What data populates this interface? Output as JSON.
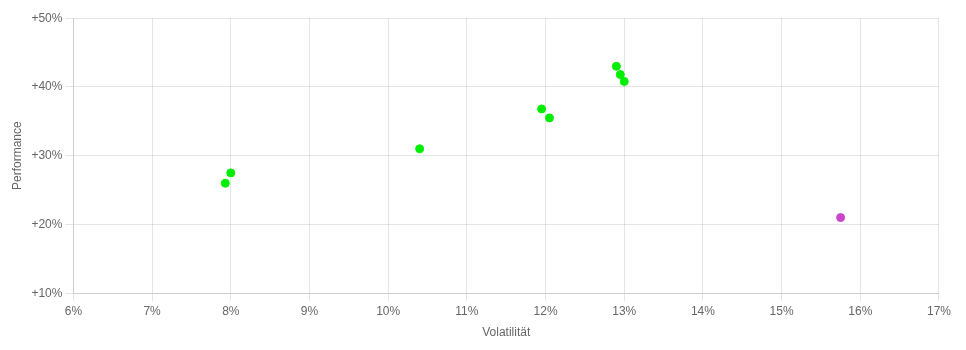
{
  "chart_data": {
    "type": "scatter",
    "xlabel": "Volatilität",
    "ylabel": "Performance",
    "xlim": [
      0.06,
      0.17
    ],
    "ylim": [
      0.1,
      0.5
    ],
    "xticks": [
      {
        "value": 0.06,
        "label": "6%"
      },
      {
        "value": 0.07,
        "label": "7%"
      },
      {
        "value": 0.08,
        "label": "8%"
      },
      {
        "value": 0.09,
        "label": "9%"
      },
      {
        "value": 0.1,
        "label": "10%"
      },
      {
        "value": 0.11,
        "label": "11%"
      },
      {
        "value": 0.12,
        "label": "12%"
      },
      {
        "value": 0.13,
        "label": "13%"
      },
      {
        "value": 0.14,
        "label": "14%"
      },
      {
        "value": 0.15,
        "label": "15%"
      },
      {
        "value": 0.16,
        "label": "16%"
      },
      {
        "value": 0.17,
        "label": "17%"
      }
    ],
    "yticks": [
      {
        "value": 0.1,
        "label": "+10%"
      },
      {
        "value": 0.2,
        "label": "+20%"
      },
      {
        "value": 0.3,
        "label": "+30%"
      },
      {
        "value": 0.4,
        "label": "+40%"
      },
      {
        "value": 0.5,
        "label": "+50%"
      }
    ],
    "grid": true,
    "series": [
      {
        "color": "#00ee00",
        "x": [
          0.08,
          0.0793,
          0.104,
          0.1195,
          0.1205,
          0.129,
          0.1295,
          0.13
        ],
        "values": [
          0.275,
          0.26,
          0.31,
          0.368,
          0.355,
          0.43,
          0.418,
          0.408
        ]
      },
      {
        "color": "#cc44cc",
        "x": [
          0.1575
        ],
        "values": [
          0.21
        ]
      }
    ]
  }
}
